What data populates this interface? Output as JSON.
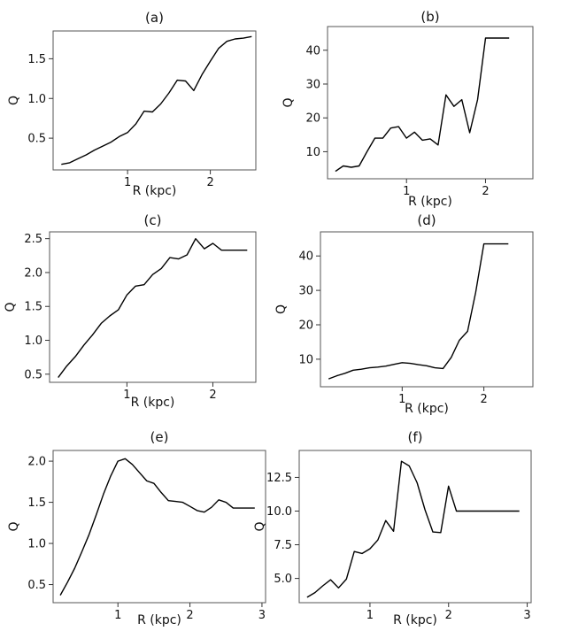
{
  "chart_data": [
    {
      "id": "a",
      "type": "line",
      "title": "(a)",
      "xlabel": "R (kpc)",
      "ylabel": "Q",
      "xlim": [
        0.1,
        2.55
      ],
      "ylim": [
        0.1,
        1.85
      ],
      "xticks": [
        1,
        2
      ],
      "xtick_labels": [
        "1",
        "2"
      ],
      "yticks": [
        0.5,
        1.0,
        1.5
      ],
      "ytick_labels": [
        "0.5",
        "1.0",
        "1.5"
      ],
      "x": [
        0.2,
        0.3,
        0.4,
        0.5,
        0.6,
        0.7,
        0.8,
        0.9,
        1.0,
        1.1,
        1.2,
        1.3,
        1.4,
        1.5,
        1.6,
        1.7,
        1.8,
        1.9,
        2.0,
        2.1,
        2.2,
        2.3,
        2.4,
        2.5
      ],
      "y": [
        0.17,
        0.19,
        0.24,
        0.29,
        0.35,
        0.4,
        0.45,
        0.52,
        0.57,
        0.68,
        0.84,
        0.83,
        0.93,
        1.07,
        1.23,
        1.22,
        1.1,
        1.3,
        1.47,
        1.63,
        1.72,
        1.75,
        1.76,
        1.78
      ]
    },
    {
      "id": "b",
      "type": "line",
      "title": "(b)",
      "xlabel": "R (kpc)",
      "ylabel": "Q",
      "xlim": [
        0.0,
        2.6
      ],
      "ylim": [
        2,
        47
      ],
      "xticks": [
        1,
        2
      ],
      "xtick_labels": [
        "1",
        "2"
      ],
      "yticks": [
        10,
        20,
        30,
        40
      ],
      "ytick_labels": [
        "10",
        "20",
        "30",
        "40"
      ],
      "x": [
        0.1,
        0.2,
        0.3,
        0.4,
        0.5,
        0.6,
        0.7,
        0.8,
        0.9,
        1.0,
        1.1,
        1.2,
        1.3,
        1.4,
        1.5,
        1.6,
        1.7,
        1.8,
        1.9,
        2.0,
        2.1,
        2.2,
        2.3
      ],
      "y": [
        4.2,
        5.8,
        5.4,
        5.8,
        10.0,
        14.0,
        14.0,
        17.0,
        17.4,
        14.0,
        15.8,
        13.4,
        13.8,
        12.0,
        26.8,
        23.4,
        25.4,
        15.6,
        25.4,
        43.6,
        43.6,
        43.6,
        43.6
      ]
    },
    {
      "id": "c",
      "type": "line",
      "title": "(c)",
      "xlabel": "R (kpc)",
      "ylabel": "Q",
      "xlim": [
        0.1,
        2.5
      ],
      "ylim": [
        0.38,
        2.6
      ],
      "xticks": [
        1,
        2
      ],
      "xtick_labels": [
        "1",
        "2"
      ],
      "yticks": [
        0.5,
        1.0,
        1.5,
        2.0,
        2.5
      ],
      "ytick_labels": [
        "0.5",
        "1.0",
        "1.5",
        "2.0",
        "2.5"
      ],
      "x": [
        0.2,
        0.3,
        0.4,
        0.5,
        0.6,
        0.7,
        0.8,
        0.9,
        1.0,
        1.1,
        1.2,
        1.3,
        1.4,
        1.5,
        1.6,
        1.7,
        1.8,
        1.9,
        2.0,
        2.1,
        2.2,
        2.3,
        2.4
      ],
      "y": [
        0.45,
        0.62,
        0.76,
        0.93,
        1.08,
        1.25,
        1.36,
        1.45,
        1.67,
        1.8,
        1.82,
        1.97,
        2.06,
        2.22,
        2.2,
        2.26,
        2.5,
        2.35,
        2.43,
        2.33,
        2.33,
        2.33,
        2.33
      ]
    },
    {
      "id": "d",
      "type": "line",
      "title": "(d)",
      "xlabel": "R (kpc)",
      "ylabel": "Q",
      "xlim": [
        0.0,
        2.6
      ],
      "ylim": [
        2,
        47
      ],
      "xticks": [
        1,
        2
      ],
      "xtick_labels": [
        "1",
        "2"
      ],
      "yticks": [
        10,
        20,
        30,
        40
      ],
      "ytick_labels": [
        "10",
        "20",
        "30",
        "40"
      ],
      "x": [
        0.1,
        0.2,
        0.3,
        0.4,
        0.5,
        0.6,
        0.7,
        0.8,
        0.9,
        1.0,
        1.1,
        1.2,
        1.3,
        1.4,
        1.5,
        1.6,
        1.7,
        1.8,
        1.9,
        2.0,
        2.1,
        2.2,
        2.3
      ],
      "y": [
        4.3,
        5.2,
        5.9,
        6.8,
        7.1,
        7.5,
        7.7,
        8.0,
        8.5,
        9.0,
        8.8,
        8.4,
        8.1,
        7.5,
        7.3,
        10.5,
        15.5,
        18.1,
        29.5,
        43.5,
        43.5,
        43.5,
        43.5
      ]
    },
    {
      "id": "e",
      "type": "line",
      "title": "(e)",
      "xlabel": "R (kpc)",
      "ylabel": "Q",
      "xlim": [
        0.1,
        3.05
      ],
      "ylim": [
        0.28,
        2.13
      ],
      "xticks": [
        1,
        2,
        3
      ],
      "xtick_labels": [
        "1",
        "2",
        "3"
      ],
      "yticks": [
        0.5,
        1.0,
        1.5,
        2.0
      ],
      "ytick_labels": [
        "0.5",
        "1.0",
        "1.5",
        "2.0"
      ],
      "x": [
        0.2,
        0.3,
        0.4,
        0.5,
        0.6,
        0.7,
        0.8,
        0.9,
        1.0,
        1.1,
        1.2,
        1.3,
        1.4,
        1.5,
        1.6,
        1.7,
        1.8,
        1.9,
        2.0,
        2.1,
        2.2,
        2.3,
        2.4,
        2.5,
        2.6,
        2.7,
        2.8,
        2.9
      ],
      "y": [
        0.37,
        0.53,
        0.7,
        0.9,
        1.11,
        1.35,
        1.6,
        1.82,
        2.0,
        2.03,
        1.96,
        1.86,
        1.76,
        1.73,
        1.62,
        1.52,
        1.51,
        1.5,
        1.45,
        1.4,
        1.38,
        1.44,
        1.53,
        1.5,
        1.43,
        1.43,
        1.43,
        1.43
      ]
    },
    {
      "id": "f",
      "type": "line",
      "title": "(f)",
      "xlabel": "R (kpc)",
      "ylabel": "Q",
      "xlim": [
        0.1,
        3.05
      ],
      "ylim": [
        3.2,
        14.5
      ],
      "xticks": [
        1,
        2,
        3
      ],
      "xtick_labels": [
        "1",
        "2",
        "3"
      ],
      "yticks": [
        5.0,
        7.5,
        10.0,
        12.5
      ],
      "ytick_labels": [
        "5.0",
        "7.5",
        "10.0",
        "12.5"
      ],
      "x": [
        0.2,
        0.3,
        0.4,
        0.5,
        0.6,
        0.7,
        0.8,
        0.9,
        1.0,
        1.1,
        1.2,
        1.3,
        1.4,
        1.5,
        1.6,
        1.7,
        1.8,
        1.9,
        2.0,
        2.1,
        2.2,
        2.3,
        2.4,
        2.5,
        2.6,
        2.7,
        2.8,
        2.9
      ],
      "y": [
        3.6,
        3.95,
        4.45,
        4.9,
        4.3,
        4.95,
        7.0,
        6.85,
        7.2,
        7.85,
        9.3,
        8.5,
        13.7,
        13.35,
        12.1,
        10.1,
        8.45,
        8.4,
        11.85,
        10.0,
        10.0,
        10.0,
        10.0,
        10.0,
        10.0,
        10.0,
        10.0,
        10.0
      ]
    }
  ]
}
